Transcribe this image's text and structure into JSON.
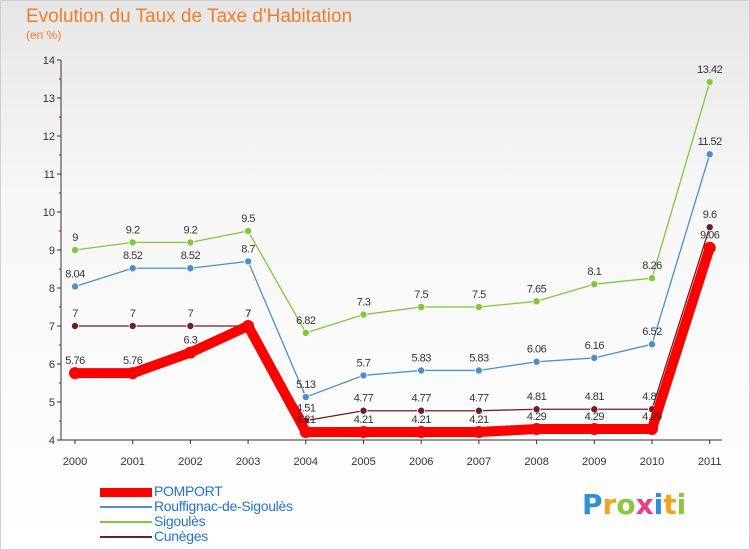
{
  "chart_data": {
    "type": "line",
    "title": "Evolution du Taux de Taxe d'Habitation",
    "subtitle": "(en %)",
    "x": [
      "2000",
      "2001",
      "2002",
      "2003",
      "2004",
      "2005",
      "2006",
      "2007",
      "2008",
      "2009",
      "2010",
      "2011"
    ],
    "ylim": [
      4,
      14
    ],
    "yticks": [
      4,
      5,
      6,
      7,
      8,
      9,
      10,
      11,
      12,
      13,
      14
    ],
    "grid": false,
    "legend_position": "bottom-left",
    "series": [
      {
        "name": "Cunèges",
        "color": "#6e1e24",
        "values": [
          7,
          7,
          7,
          7,
          4.51,
          4.77,
          4.77,
          4.77,
          4.81,
          4.81,
          4.81,
          9.6
        ],
        "labels": [
          "7",
          "7",
          "7",
          "7",
          "4.51",
          "4.77",
          "4.77",
          "4.77",
          "4.81",
          "4.81",
          "4.81",
          "9.6"
        ]
      },
      {
        "name": "Sigoulès",
        "color": "#7ec83c",
        "values": [
          9,
          9.2,
          9.2,
          9.5,
          6.82,
          7.3,
          7.5,
          7.5,
          7.65,
          8.1,
          8.26,
          13.42
        ],
        "labels": [
          "9",
          "9.2",
          "9.2",
          "9.5",
          "6.82",
          "7.3",
          "7.5",
          "7.5",
          "7.65",
          "8.1",
          "8.26",
          "13.42"
        ]
      },
      {
        "name": "Rouffignac-de-Sigoulès",
        "color": "#4a8fcc",
        "values": [
          8.04,
          8.52,
          8.52,
          8.7,
          5.13,
          5.7,
          5.83,
          5.83,
          6.06,
          6.16,
          6.52,
          11.52
        ],
        "labels": [
          "8.04",
          "8.52",
          "8.52",
          "8.7",
          "5.13",
          "5.7",
          "5.83",
          "5.83",
          "6.06",
          "6.16",
          "6.52",
          "11.52"
        ]
      },
      {
        "name": "POMPORT",
        "color": "#ff0000",
        "values": [
          5.76,
          5.76,
          6.3,
          7,
          4.21,
          4.21,
          4.21,
          4.21,
          4.29,
          4.29,
          4.29,
          9.06
        ],
        "labels": [
          "5.76",
          "5.76",
          "6.3",
          "7",
          "4.21",
          "4.21",
          "4.21",
          "4.21",
          "4.29",
          "4.29",
          "4.29",
          "9.06"
        ]
      }
    ]
  },
  "legend": [
    {
      "name": "POMPORT",
      "color": "#ff0000"
    },
    {
      "name": "Rouffignac-de-Sigoulès",
      "color": "#4a8fcc"
    },
    {
      "name": "Sigoulès",
      "color": "#7ec83c"
    },
    {
      "name": "Cunèges",
      "color": "#6e1e24"
    }
  ],
  "logo": {
    "text": "Proxiti",
    "letters": [
      {
        "ch": "P",
        "color": "#2f8fd8"
      },
      {
        "ch": "r",
        "color": "#f7a21b"
      },
      {
        "ch": "o",
        "color": "#8cc63f"
      },
      {
        "ch": "x",
        "color": "#e83e8c"
      },
      {
        "ch": "i",
        "color": "#2f8fd8"
      },
      {
        "ch": "t",
        "color": "#f7a21b"
      },
      {
        "ch": "i",
        "color": "#8cc63f"
      }
    ]
  }
}
